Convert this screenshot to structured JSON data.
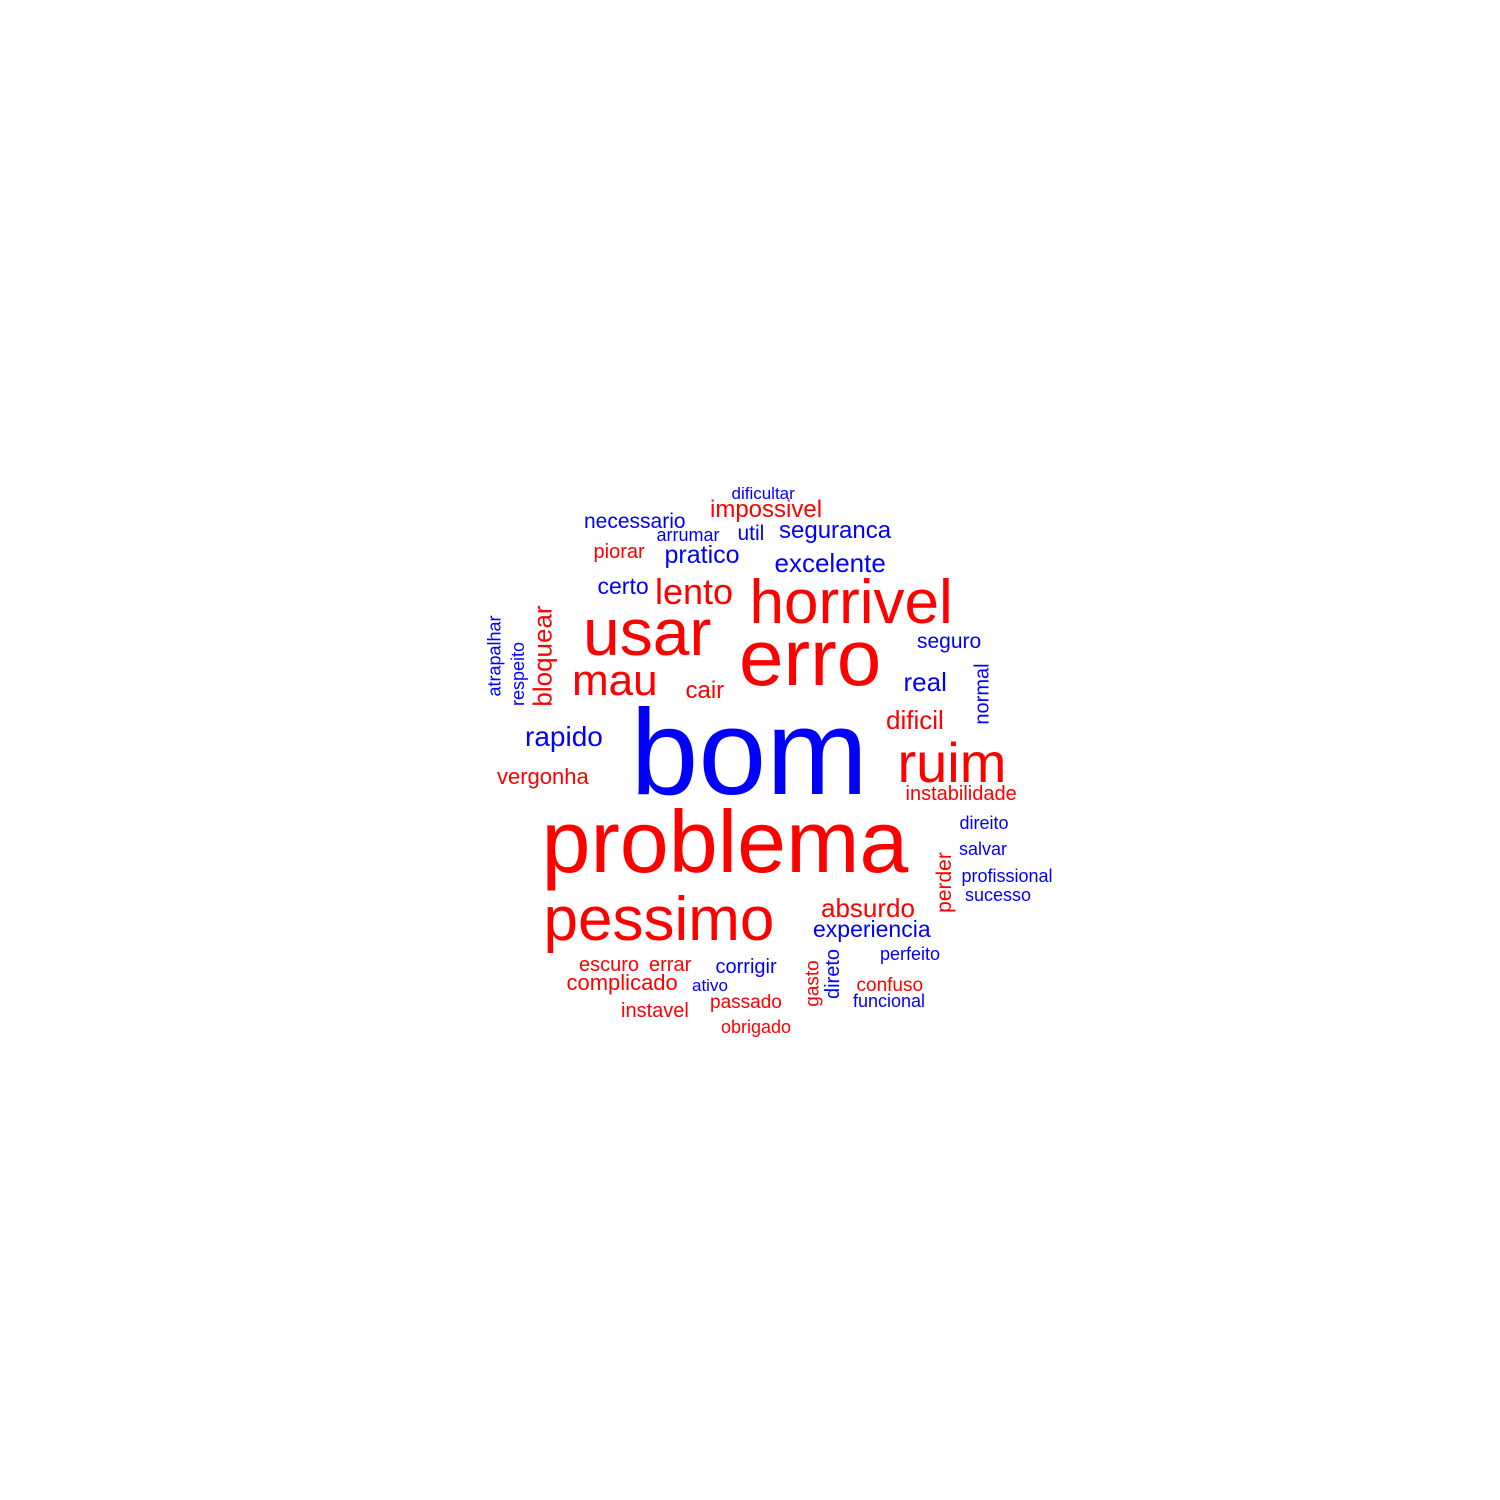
{
  "colors": {
    "positive": "#0000ff",
    "negative": "#ff0000"
  },
  "words": [
    {
      "text": "bom",
      "sentiment": "positive"
    },
    {
      "text": "problema",
      "sentiment": "negative"
    },
    {
      "text": "erro",
      "sentiment": "negative"
    },
    {
      "text": "usar",
      "sentiment": "negative"
    },
    {
      "text": "pessimo",
      "sentiment": "negative"
    },
    {
      "text": "horrivel",
      "sentiment": "negative"
    },
    {
      "text": "ruim",
      "sentiment": "negative"
    },
    {
      "text": "mau",
      "sentiment": "negative"
    },
    {
      "text": "lento",
      "sentiment": "negative"
    },
    {
      "text": "dificultar",
      "sentiment": "positive"
    },
    {
      "text": "impossivel",
      "sentiment": "negative"
    },
    {
      "text": "necessario",
      "sentiment": "positive"
    },
    {
      "text": "arrumar",
      "sentiment": "positive"
    },
    {
      "text": "util",
      "sentiment": "positive"
    },
    {
      "text": "seguranca",
      "sentiment": "positive"
    },
    {
      "text": "piorar",
      "sentiment": "negative"
    },
    {
      "text": "pratico",
      "sentiment": "positive"
    },
    {
      "text": "excelente",
      "sentiment": "positive"
    },
    {
      "text": "certo",
      "sentiment": "positive"
    },
    {
      "text": "bloquear",
      "sentiment": "negative",
      "vertical": true
    },
    {
      "text": "atrapalhar",
      "sentiment": "positive",
      "vertical": true
    },
    {
      "text": "respeito",
      "sentiment": "positive",
      "vertical": true
    },
    {
      "text": "seguro",
      "sentiment": "positive"
    },
    {
      "text": "normal",
      "sentiment": "positive",
      "vertical": true
    },
    {
      "text": "real",
      "sentiment": "positive"
    },
    {
      "text": "cair",
      "sentiment": "negative"
    },
    {
      "text": "dificil",
      "sentiment": "negative"
    },
    {
      "text": "rapido",
      "sentiment": "positive"
    },
    {
      "text": "vergonha",
      "sentiment": "negative"
    },
    {
      "text": "instabilidade",
      "sentiment": "negative"
    },
    {
      "text": "direito",
      "sentiment": "positive"
    },
    {
      "text": "salvar",
      "sentiment": "positive"
    },
    {
      "text": "perder",
      "sentiment": "negative",
      "vertical": true
    },
    {
      "text": "profissional",
      "sentiment": "positive"
    },
    {
      "text": "sucesso",
      "sentiment": "positive"
    },
    {
      "text": "absurdo",
      "sentiment": "negative"
    },
    {
      "text": "experiencia",
      "sentiment": "positive"
    },
    {
      "text": "perfeito",
      "sentiment": "positive"
    },
    {
      "text": "escuro",
      "sentiment": "negative"
    },
    {
      "text": "errar",
      "sentiment": "negative"
    },
    {
      "text": "corrigir",
      "sentiment": "positive"
    },
    {
      "text": "gasto",
      "sentiment": "negative",
      "vertical": true
    },
    {
      "text": "direto",
      "sentiment": "positive",
      "vertical": true
    },
    {
      "text": "complicado",
      "sentiment": "negative"
    },
    {
      "text": "ativo",
      "sentiment": "positive"
    },
    {
      "text": "confuso",
      "sentiment": "negative"
    },
    {
      "text": "passado",
      "sentiment": "negative"
    },
    {
      "text": "funcional",
      "sentiment": "positive"
    },
    {
      "text": "instavel",
      "sentiment": "negative"
    },
    {
      "text": "obrigado",
      "sentiment": "negative"
    }
  ]
}
